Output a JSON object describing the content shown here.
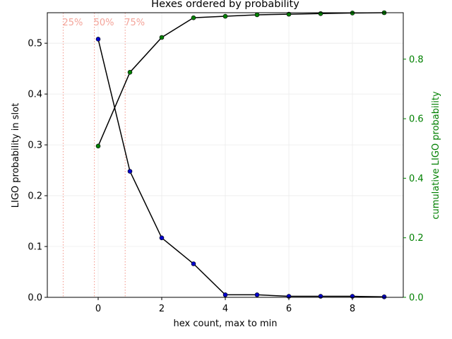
{
  "chart_data": {
    "type": "line",
    "title": "Hexes ordered by probability",
    "xlabel": "hex count,  max to min",
    "ylabel": "LIGO probability in slot",
    "y2label": "cumulative LIGO probability",
    "xlim": [
      -1.6,
      9.6
    ],
    "ylim": [
      0,
      0.56
    ],
    "y2lim": [
      0,
      0.956
    ],
    "xticks": [
      "0",
      "2",
      "4",
      "6",
      "8"
    ],
    "yticks": [
      "0.0",
      "0.1",
      "0.2",
      "0.3",
      "0.4",
      "0.5"
    ],
    "y2ticks": [
      "0.0",
      "0.2",
      "0.4",
      "0.6",
      "0.8"
    ],
    "grid": true,
    "colors": {
      "line": "#000000",
      "slot_marker": "#0000cc",
      "cumulative_marker": "#008000",
      "right_axis": "#008000",
      "quantile_line": "#f4a49a"
    },
    "series": [
      {
        "axis": "left",
        "x": [
          0,
          1,
          2,
          3,
          4,
          5,
          6,
          7,
          8,
          9
        ],
        "values": [
          0.508,
          0.248,
          0.117,
          0.066,
          0.005,
          0.005,
          0.002,
          0.002,
          0.002,
          0.001
        ]
      },
      {
        "axis": "right",
        "x": [
          0,
          1,
          2,
          3,
          4,
          5,
          6,
          7,
          8,
          9
        ],
        "values": [
          0.508,
          0.756,
          0.873,
          0.939,
          0.944,
          0.949,
          0.951,
          0.953,
          0.955,
          0.956
        ]
      }
    ],
    "quantile_lines": [
      {
        "label": "25%",
        "x": -1.1
      },
      {
        "label": "50%",
        "x": -0.12
      },
      {
        "label": "75%",
        "x": 0.85
      }
    ]
  }
}
